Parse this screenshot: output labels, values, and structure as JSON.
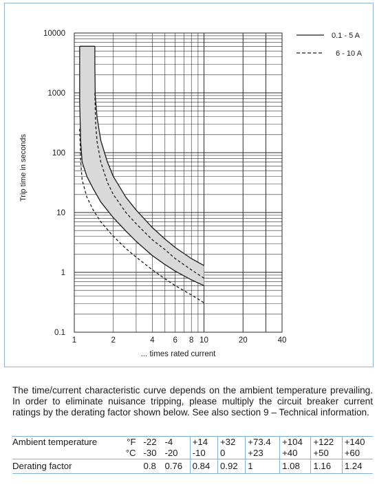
{
  "chart_data": {
    "type": "line",
    "ylabel": "Trip time in seconds",
    "xlabel": "... times rated current",
    "x_scale": "log",
    "y_scale": "log",
    "xlim": [
      1,
      40
    ],
    "ylim": [
      0.1,
      10000
    ],
    "x_ticks": [
      1,
      2,
      4,
      6,
      8,
      10,
      20,
      40
    ],
    "x_tick_labels": [
      "1",
      "2",
      "4",
      "6",
      "8",
      "10",
      "20",
      "40"
    ],
    "y_ticks": [
      0.1,
      1,
      10,
      100,
      1000,
      10000
    ],
    "y_tick_labels": [
      "0.1",
      "1",
      "10",
      "100",
      "1000",
      "10000"
    ],
    "grid": true,
    "legend_position": "top-right",
    "series": [
      {
        "name": "0.1 - 5 A",
        "style": "solid",
        "band": "upper",
        "x": [
          1.44,
          1.44,
          1.45,
          1.5,
          1.6,
          1.8,
          2.0,
          2.5,
          3.0,
          4.0,
          5.0,
          6.0,
          8.0,
          10.0
        ],
        "y": [
          6000,
          3000,
          900,
          380,
          160,
          70,
          40,
          18,
          11,
          5.6,
          3.6,
          2.6,
          1.7,
          1.3
        ]
      },
      {
        "name": "0.1 - 5 A",
        "style": "solid",
        "band": "lower",
        "x": [
          1.1,
          1.1,
          1.12,
          1.15,
          1.25,
          1.4,
          1.6,
          2.0,
          2.5,
          3.0,
          4.0,
          5.0,
          6.0,
          8.0,
          10.0
        ],
        "y": [
          6000,
          700,
          150,
          70,
          40,
          25,
          15,
          8.2,
          4.9,
          3.3,
          1.9,
          1.35,
          1.05,
          0.75,
          0.6
        ]
      },
      {
        "name": "6 - 10 A",
        "style": "dashed",
        "band": "upper",
        "x": [
          1.44,
          1.46,
          1.5,
          1.6,
          1.8,
          2.0,
          2.5,
          3.0,
          4.0,
          5.0,
          6.0,
          8.0,
          10.0
        ],
        "y": [
          1000,
          300,
          150,
          70,
          32,
          20,
          10,
          6.5,
          3.5,
          2.4,
          1.7,
          1.1,
          0.8
        ]
      },
      {
        "name": "6 - 10 A",
        "style": "dashed",
        "band": "lower",
        "x": [
          1.1,
          1.12,
          1.15,
          1.25,
          1.4,
          1.6,
          2.0,
          2.5,
          3.0,
          4.0,
          5.0,
          6.0,
          8.0,
          10.0
        ],
        "y": [
          250,
          70,
          35,
          18,
          11,
          7,
          4,
          2.5,
          1.8,
          1.1,
          0.78,
          0.6,
          0.42,
          0.31
        ]
      }
    ]
  },
  "description": "The time/current characteristic curve depends on the ambient temperature prevailing. In order to eliminate nuisance tripping, please multiply the circuit breaker current ratings by the derating factor shown below. See also section 9 – Technical information.",
  "derating_table": {
    "temp_label": "Ambient temperature",
    "unit_f": "°F",
    "unit_c": "°C",
    "factor_label": "Derating factor",
    "fahrenheit": [
      "-22",
      "-4",
      "+14",
      "+32",
      "+73.4",
      "+104",
      "+122",
      "+140"
    ],
    "celsius": [
      "-30",
      "-20",
      "-10",
      "0",
      "+23",
      "+40",
      "+50",
      "+60"
    ],
    "factors": [
      "0.8",
      "0.76",
      "0.84",
      "0.92",
      "1",
      "1.08",
      "1.16",
      "1.24"
    ]
  },
  "colors": {
    "band_fill": "#d9d9d9",
    "curve": "#1a1a1a",
    "grid": "#2a2a2a",
    "frame": "#8fb9d6",
    "table_rule": "#7fb2d4"
  }
}
